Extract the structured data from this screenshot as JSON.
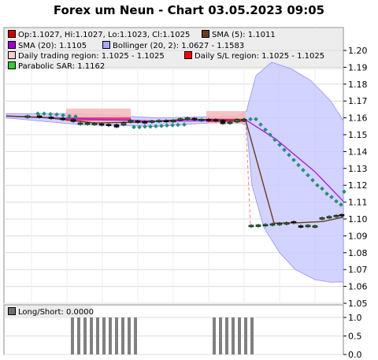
{
  "title": "Forex um Neun - Chart 03.05.2023 09:05",
  "legend": [
    {
      "label": "Op:1.1027, Hi:1.1027, Lo:1.1023, Cl:1.1025",
      "color": "#cc0000"
    },
    {
      "label": "SMA (5): 1.1011",
      "color": "#6b3a1f"
    },
    {
      "label": "SMA (20): 1.1105",
      "color": "#9a00cc"
    },
    {
      "label": "Bollinger (20, 2): 1.0627 - 1.1583",
      "color": "#a8a8ff"
    },
    {
      "label": "Daily trading region: 1.1025 - 1.1025",
      "color": "#f2d0d0"
    },
    {
      "label": "Daily S/L region: 1.1025 - 1.1025",
      "color": "#ff0000"
    },
    {
      "label": "Parabolic SAR: 1.1162",
      "color": "#33cc33"
    }
  ],
  "lower_legend": {
    "label": "Long/Short: 0.0000",
    "color": "#707070"
  },
  "chart_data": [
    {
      "type": "candlestick",
      "y_ticks": [
        "1.05",
        "1.06",
        "1.07",
        "1.08",
        "1.09",
        "1.10",
        "1.11",
        "1.12",
        "1.13",
        "1.14",
        "1.15",
        "1.16",
        "1.17",
        "1.18",
        "1.19",
        "1.20"
      ],
      "ylim": [
        1.05,
        1.205
      ],
      "candles": [
        {
          "x": 35,
          "o": 1.1602,
          "c": 1.1612
        },
        {
          "x": 50,
          "o": 1.1612,
          "c": 1.1605
        },
        {
          "x": 65,
          "o": 1.1605,
          "c": 1.1598
        },
        {
          "x": 80,
          "o": 1.1598,
          "c": 1.1593
        },
        {
          "x": 93,
          "o": 1.159,
          "c": 1.1578
        },
        {
          "x": 102,
          "o": 1.157,
          "c": 1.157
        },
        {
          "x": 111,
          "o": 1.157,
          "c": 1.157
        },
        {
          "x": 120,
          "o": 1.1568,
          "c": 1.1568
        },
        {
          "x": 129,
          "o": 1.1565,
          "c": 1.1562
        },
        {
          "x": 138,
          "o": 1.1562,
          "c": 1.156
        },
        {
          "x": 148,
          "o": 1.156,
          "c": 1.1545
        },
        {
          "x": 157,
          "o": 1.1558,
          "c": 1.1572
        },
        {
          "x": 166,
          "o": 1.1575,
          "c": 1.1585
        },
        {
          "x": 175,
          "o": 1.1582,
          "c": 1.1578
        },
        {
          "x": 184,
          "o": 1.1578,
          "c": 1.1575
        },
        {
          "x": 193,
          "o": 1.1578,
          "c": 1.1582
        },
        {
          "x": 202,
          "o": 1.1582,
          "c": 1.1585
        },
        {
          "x": 211,
          "o": 1.1585,
          "c": 1.158
        },
        {
          "x": 220,
          "o": 1.1582,
          "c": 1.1585
        },
        {
          "x": 229,
          "o": 1.159,
          "c": 1.1595
        },
        {
          "x": 238,
          "o": 1.1595,
          "c": 1.16
        },
        {
          "x": 247,
          "o": 1.1598,
          "c": 1.1593
        },
        {
          "x": 256,
          "o": 1.159,
          "c": 1.1592
        },
        {
          "x": 265,
          "o": 1.1592,
          "c": 1.159
        },
        {
          "x": 274,
          "o": 1.159,
          "c": 1.1585
        },
        {
          "x": 283,
          "o": 1.1585,
          "c": 1.1565
        },
        {
          "x": 292,
          "o": 1.157,
          "c": 1.1575
        },
        {
          "x": 301,
          "o": 1.1575,
          "c": 1.159
        },
        {
          "x": 310,
          "o": 1.159,
          "c": 1.1592
        },
        {
          "x": 319,
          "o": 1.0963,
          "c": 1.0963
        },
        {
          "x": 328,
          "o": 1.0965,
          "c": 1.0965
        },
        {
          "x": 337,
          "o": 1.0968,
          "c": 1.0968
        },
        {
          "x": 346,
          "o": 1.097,
          "c": 1.0972
        },
        {
          "x": 355,
          "o": 1.0975,
          "c": 1.0975
        },
        {
          "x": 364,
          "o": 1.0978,
          "c": 1.0978
        },
        {
          "x": 373,
          "o": 1.0985,
          "c": 1.098
        },
        {
          "x": 382,
          "o": 1.096,
          "c": 1.0955
        },
        {
          "x": 391,
          "o": 1.096,
          "c": 1.0963
        },
        {
          "x": 400,
          "o": 1.096,
          "c": 1.096
        },
        {
          "x": 409,
          "o": 1.1005,
          "c": 1.1008
        },
        {
          "x": 418,
          "o": 1.1012,
          "c": 1.1015
        },
        {
          "x": 427,
          "o": 1.102,
          "c": 1.1022
        },
        {
          "x": 434,
          "o": 1.1027,
          "c": 1.1025
        }
      ],
      "sma5": [
        [
          8,
          1.161
        ],
        [
          60,
          1.16
        ],
        [
          120,
          1.157
        ],
        [
          180,
          1.1575
        ],
        [
          240,
          1.1592
        ],
        [
          312,
          1.1585
        ],
        [
          348,
          1.0975
        ],
        [
          380,
          1.0978
        ],
        [
          410,
          1.0985
        ],
        [
          436,
          1.1011
        ]
      ],
      "sma20": [
        [
          8,
          1.1612
        ],
        [
          100,
          1.1595
        ],
        [
          200,
          1.158
        ],
        [
          300,
          1.1585
        ],
        [
          313,
          1.1585
        ],
        [
          350,
          1.1475
        ],
        [
          400,
          1.128
        ],
        [
          436,
          1.1105
        ]
      ],
      "bollinger_upper": [
        [
          8,
          1.1625
        ],
        [
          100,
          1.1625
        ],
        [
          200,
          1.16
        ],
        [
          300,
          1.161
        ],
        [
          313,
          1.164
        ],
        [
          325,
          1.185
        ],
        [
          345,
          1.193
        ],
        [
          370,
          1.189
        ],
        [
          395,
          1.182
        ],
        [
          420,
          1.17
        ],
        [
          436,
          1.1583
        ]
      ],
      "bollinger_lower": [
        [
          436,
          1.0627
        ],
        [
          420,
          1.0625
        ],
        [
          400,
          1.064
        ],
        [
          375,
          1.07
        ],
        [
          355,
          1.08
        ],
        [
          335,
          1.095
        ],
        [
          320,
          1.12
        ],
        [
          313,
          1.1555
        ],
        [
          300,
          1.158
        ],
        [
          200,
          1.155
        ],
        [
          100,
          1.156
        ],
        [
          8,
          1.16
        ]
      ],
      "sar": [
        [
          48,
          1.1625
        ],
        [
          56,
          1.1625
        ],
        [
          64,
          1.1622
        ],
        [
          72,
          1.162
        ],
        [
          80,
          1.1615
        ],
        [
          88,
          1.161
        ],
        [
          96,
          1.1608
        ],
        [
          170,
          1.1545
        ],
        [
          177,
          1.1545
        ],
        [
          184,
          1.1548
        ],
        [
          191,
          1.1548
        ],
        [
          198,
          1.155
        ],
        [
          205,
          1.1552
        ],
        [
          212,
          1.1555
        ],
        [
          219,
          1.1556
        ],
        [
          226,
          1.1558
        ],
        [
          234,
          1.156
        ],
        [
          310,
          1.1588
        ],
        [
          318,
          1.1592
        ],
        [
          325,
          1.1592
        ],
        [
          331,
          1.156
        ],
        [
          337,
          1.153
        ],
        [
          343,
          1.15
        ],
        [
          349,
          1.147
        ],
        [
          355,
          1.144
        ],
        [
          361,
          1.141
        ],
        [
          367,
          1.138
        ],
        [
          373,
          1.135
        ],
        [
          379,
          1.132
        ],
        [
          385,
          1.129
        ],
        [
          391,
          1.126
        ],
        [
          397,
          1.123
        ],
        [
          403,
          1.12
        ],
        [
          409,
          1.118
        ],
        [
          415,
          1.115
        ],
        [
          421,
          1.113
        ],
        [
          427,
          1.1105
        ],
        [
          433,
          1.1085
        ],
        [
          437,
          1.1162
        ]
      ],
      "trading_regions": [
        {
          "x0": 84,
          "x1": 166,
          "y0": 1.1578,
          "y1": 1.1655,
          "color": "#f5b8b8"
        },
        {
          "x0": 262,
          "x1": 312,
          "y0": 1.1565,
          "y1": 1.164,
          "color": "#f5b8b8"
        }
      ],
      "sl_regions": [
        {
          "x0": 84,
          "x1": 166,
          "y0": 1.1583,
          "y1": 1.1603,
          "color": "#e03060"
        },
        {
          "x0": 262,
          "x1": 312,
          "y0": 1.1575,
          "y1": 1.1595,
          "color": "#e03060"
        }
      ]
    },
    {
      "type": "bar",
      "y_ticks": [
        "0.0",
        "0.5",
        "1.0"
      ],
      "ylim": [
        0,
        1.0
      ],
      "bars_x": [
        92,
        100,
        108,
        116,
        124,
        132,
        140,
        148,
        156,
        164,
        172,
        272,
        280,
        288,
        296,
        304,
        312,
        320
      ],
      "values": [
        1,
        1,
        1,
        1,
        1,
        1,
        1,
        1,
        1,
        1,
        1,
        1,
        1,
        1,
        1,
        1,
        1,
        1
      ]
    }
  ]
}
